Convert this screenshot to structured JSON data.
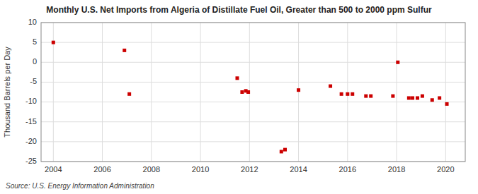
{
  "chart_data": {
    "type": "scatter",
    "title": "Monthly U.S. Net Imports from Algeria of Distillate Fuel Oil, Greater than 500 to 2000 ppm Sulfur",
    "y_label": "Thousand Barrels per Day",
    "source": "Source: U.S. Energy Information Administration",
    "color": "#cc0000",
    "marker": "square",
    "grid": true,
    "xlim": [
      2003.5,
      2020.8
    ],
    "ylim": [
      -25,
      10
    ],
    "xticks": [
      2004,
      2006,
      2008,
      2010,
      2012,
      2014,
      2016,
      2018,
      2020
    ],
    "yticks": [
      -25,
      -20,
      -15,
      -10,
      -5,
      0,
      5,
      10
    ],
    "x": [
      2004.0,
      2006.9,
      2007.1,
      2011.5,
      2011.7,
      2011.85,
      2011.95,
      2013.3,
      2013.45,
      2014.0,
      2015.3,
      2015.75,
      2016.0,
      2016.2,
      2016.75,
      2016.95,
      2017.85,
      2018.05,
      2018.5,
      2018.65,
      2018.85,
      2019.05,
      2019.45,
      2019.75,
      2020.05
    ],
    "values": [
      5.0,
      3.0,
      -8.0,
      -4.0,
      -7.5,
      -7.2,
      -7.5,
      -22.5,
      -22.0,
      -7.0,
      -6.0,
      -8.0,
      -8.0,
      -8.0,
      -8.5,
      -8.5,
      -8.5,
      0.0,
      -9.0,
      -9.0,
      -9.0,
      -8.5,
      -9.5,
      -9.0,
      -10.5
    ]
  }
}
